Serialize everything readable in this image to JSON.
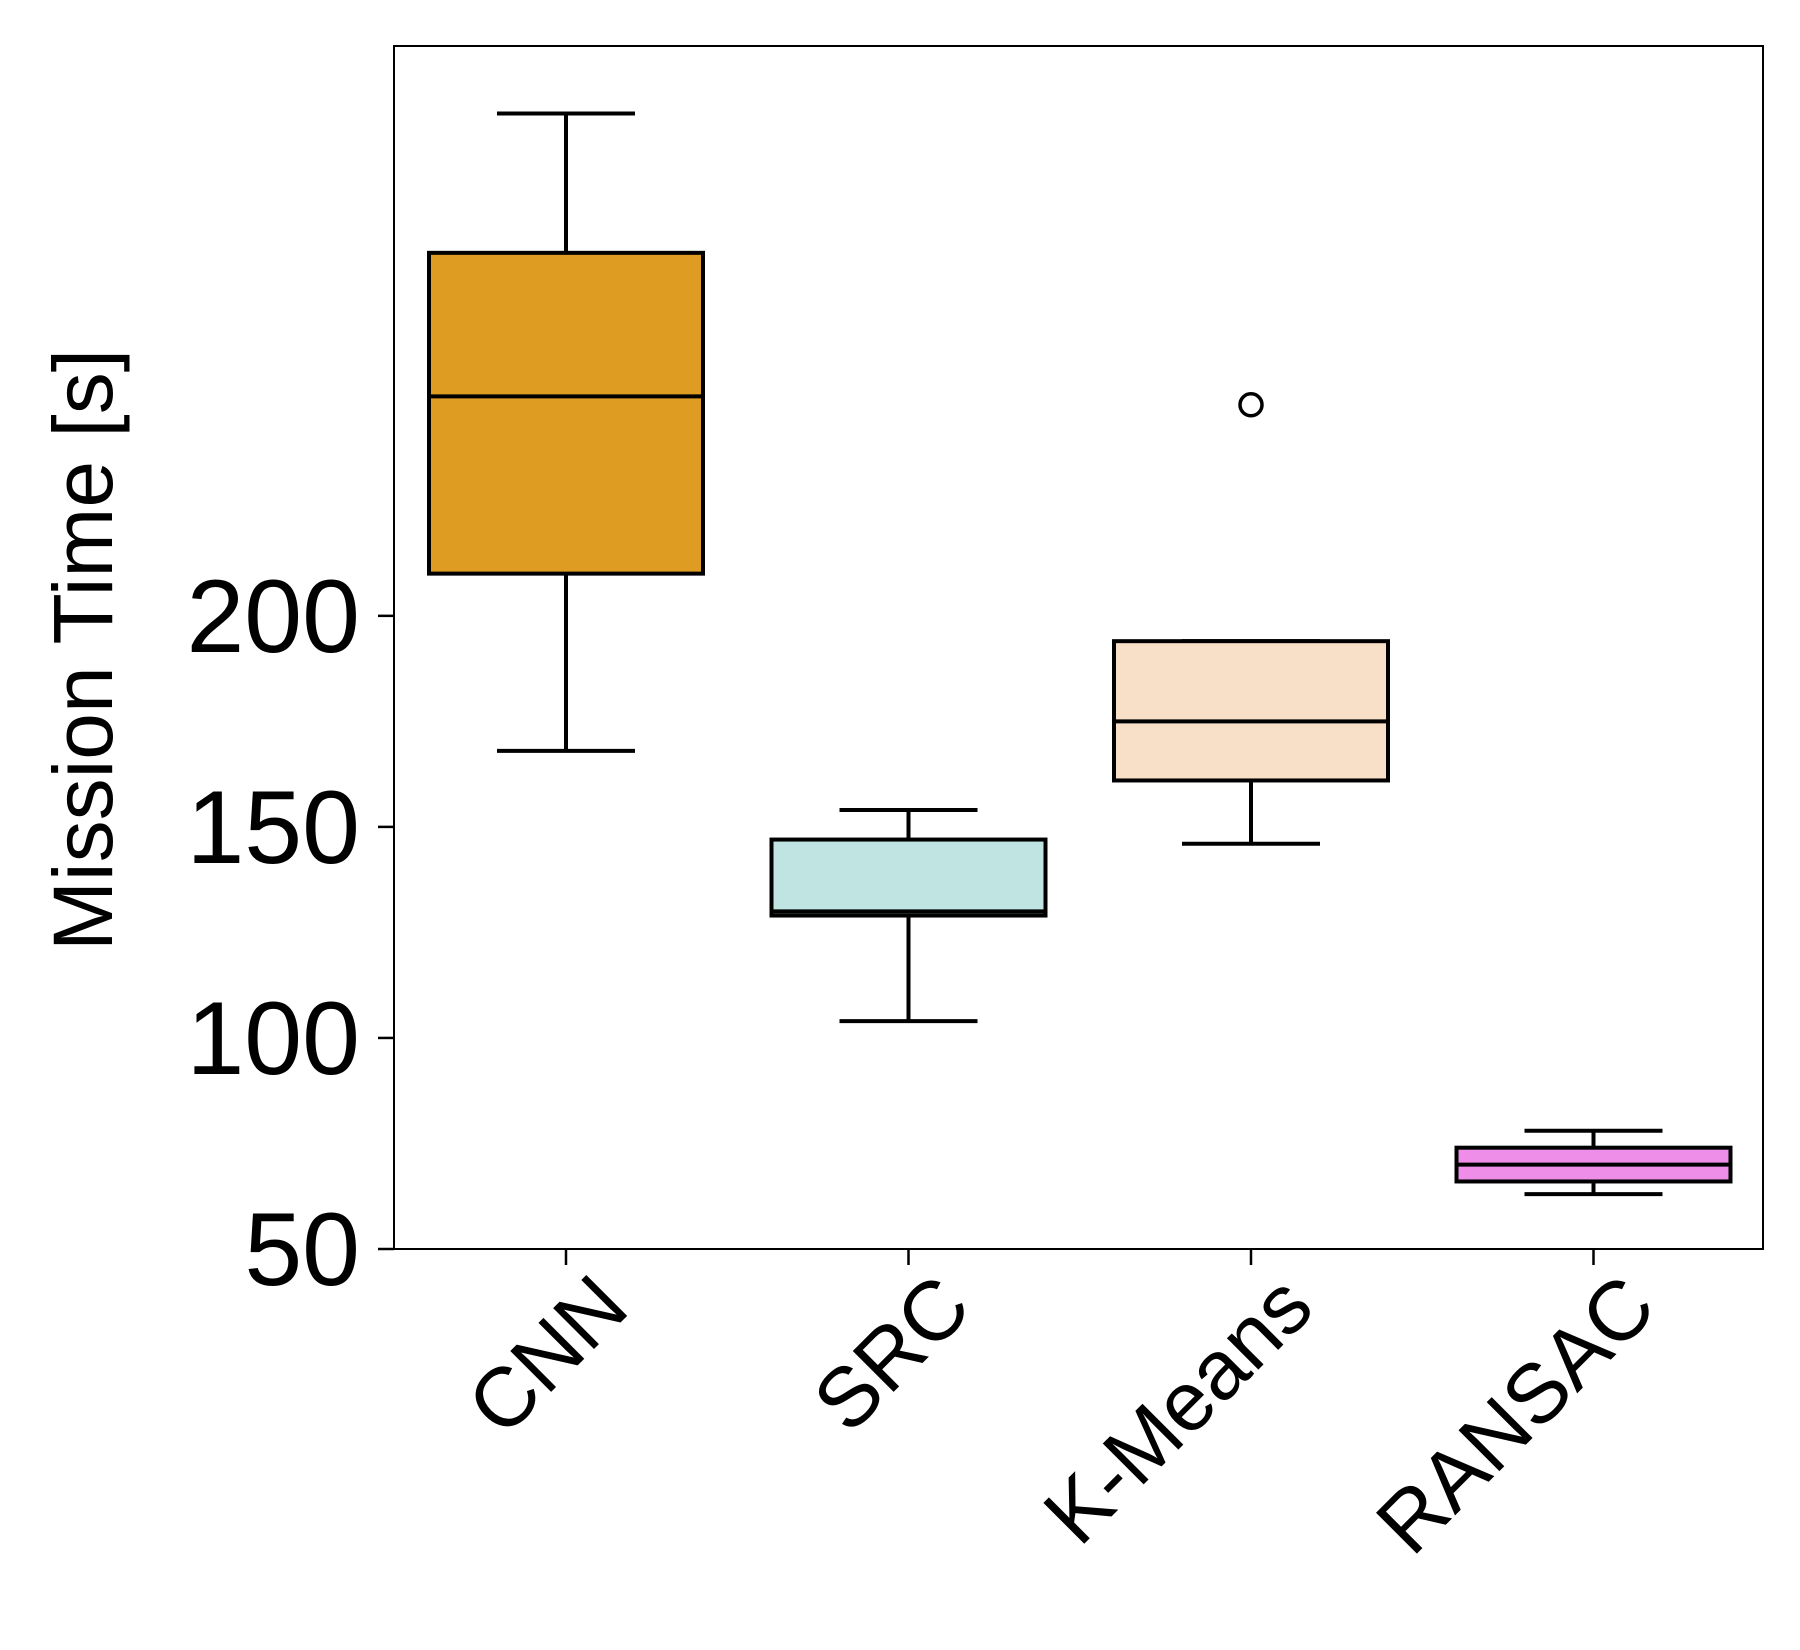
{
  "chart_data": {
    "type": "box",
    "title": "",
    "xlabel": "",
    "ylabel": "Mission Time [s]",
    "ylim": [
      50,
      335
    ],
    "yticks": [
      50,
      100,
      150,
      200
    ],
    "grid": false,
    "categories": [
      "CNN",
      "SRC",
      "K-Means",
      "RANSAC"
    ],
    "boxes": [
      {
        "name": "CNN",
        "whisker_low": 168,
        "q1": 210,
        "median": 252,
        "q3": 286,
        "whisker_high": 319,
        "fliers": [],
        "color": "#DE9C22"
      },
      {
        "name": "SRC",
        "whisker_low": 104,
        "q1": 129,
        "median": 130,
        "q3": 147,
        "whisker_high": 154,
        "fliers": [],
        "color": "#C0E4E2"
      },
      {
        "name": "K-Means",
        "whisker_low": 146,
        "q1": 161,
        "median": 175,
        "q3": 194,
        "whisker_high": 194,
        "fliers": [
          250
        ],
        "color": "#F8E0C8"
      },
      {
        "name": "RANSAC",
        "whisker_low": 63,
        "q1": 66,
        "median": 70,
        "q3": 74,
        "whisker_high": 78,
        "fliers": [],
        "color": "#EE8EE8"
      }
    ]
  }
}
